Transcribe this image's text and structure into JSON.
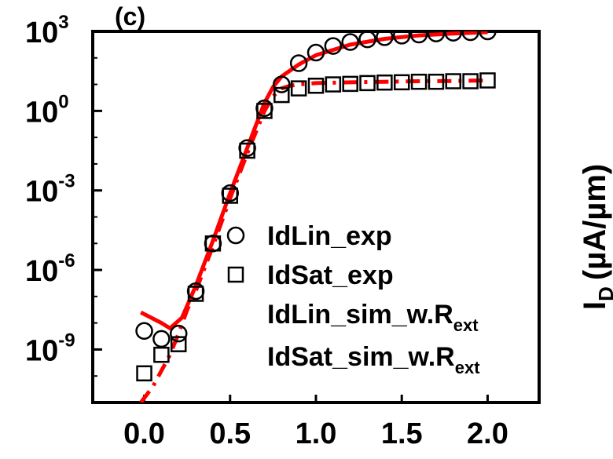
{
  "chart_data": {
    "type": "scatter",
    "panel_label": "(c)",
    "ylabel_right": "I",
    "ylabel_right_sub": "D",
    "ylabel_right_units": "(µA/µm)",
    "yscale": "log",
    "xlim": [
      -0.3,
      2.3
    ],
    "ylim_exp": [
      -11,
      3
    ],
    "x_ticks": [
      0.0,
      0.5,
      1.0,
      1.5,
      2.0
    ],
    "x_tick_labels": [
      "0.0",
      "0.5",
      "1.0",
      "1.5",
      "2.0"
    ],
    "y_ticks_exp": [
      -9,
      -6,
      -3,
      0,
      3
    ],
    "y_tick_labels": [
      {
        "base": "10",
        "exp": "-9"
      },
      {
        "base": "10",
        "exp": "-6"
      },
      {
        "base": "10",
        "exp": "-3"
      },
      {
        "base": "10",
        "exp": "0"
      },
      {
        "base": "10",
        "exp": "3"
      }
    ],
    "colors": {
      "sim": "#ff0000",
      "exp": "#000000"
    },
    "series": [
      {
        "name": "IdLin_exp",
        "marker": "circle",
        "x": [
          0.0,
          0.1,
          0.2,
          0.3,
          0.4,
          0.5,
          0.6,
          0.7,
          0.8,
          0.9,
          1.0,
          1.1,
          1.2,
          1.3,
          1.4,
          1.5,
          1.6,
          1.7,
          1.8,
          1.9,
          2.0
        ],
        "y_exp": [
          -8.3,
          -8.6,
          -8.4,
          -6.8,
          -5.0,
          -3.1,
          -1.4,
          0.1,
          1.0,
          1.8,
          2.2,
          2.45,
          2.6,
          2.7,
          2.78,
          2.84,
          2.88,
          2.92,
          2.95,
          2.97,
          3.0
        ]
      },
      {
        "name": "IdSat_exp",
        "marker": "square",
        "x": [
          0.0,
          0.1,
          0.2,
          0.3,
          0.4,
          0.5,
          0.6,
          0.7,
          0.8,
          0.9,
          1.0,
          1.1,
          1.2,
          1.3,
          1.4,
          1.5,
          1.6,
          1.7,
          1.8,
          1.9,
          2.0
        ],
        "y_exp": [
          -9.9,
          -9.2,
          -8.8,
          -6.9,
          -5.0,
          -3.2,
          -1.5,
          0.0,
          0.6,
          0.85,
          0.95,
          1.0,
          1.02,
          1.05,
          1.07,
          1.08,
          1.1,
          1.1,
          1.12,
          1.12,
          1.15
        ]
      },
      {
        "name": "IdLin_sim_w.R",
        "name_sub": "ext",
        "line": "solid",
        "x": [
          -0.02,
          0.1,
          0.15,
          0.22,
          0.3,
          0.4,
          0.5,
          0.6,
          0.7,
          0.75,
          0.8,
          0.9,
          1.0,
          1.2,
          1.4,
          1.6,
          1.8,
          2.0
        ],
        "y_exp": [
          -7.6,
          -8.0,
          -8.2,
          -7.8,
          -6.6,
          -4.9,
          -3.1,
          -1.4,
          0.3,
          0.9,
          1.3,
          1.75,
          2.1,
          2.5,
          2.72,
          2.85,
          2.92,
          2.97
        ]
      },
      {
        "name": "IdSat_sim_w.R",
        "name_sub": "ext",
        "line": "dashdot",
        "x": [
          -0.02,
          0.05,
          0.1,
          0.15,
          0.2,
          0.25,
          0.3,
          0.4,
          0.5,
          0.6,
          0.7,
          0.75,
          0.8,
          0.85,
          0.9,
          1.0,
          1.2,
          1.4,
          1.6,
          1.8,
          2.0
        ],
        "y_exp": [
          -11.0,
          -10.4,
          -9.8,
          -9.2,
          -8.4,
          -7.5,
          -6.8,
          -5.1,
          -3.3,
          -1.6,
          0.0,
          0.55,
          0.85,
          0.95,
          1.0,
          1.05,
          1.08,
          1.1,
          1.12,
          1.13,
          1.15
        ]
      }
    ]
  }
}
